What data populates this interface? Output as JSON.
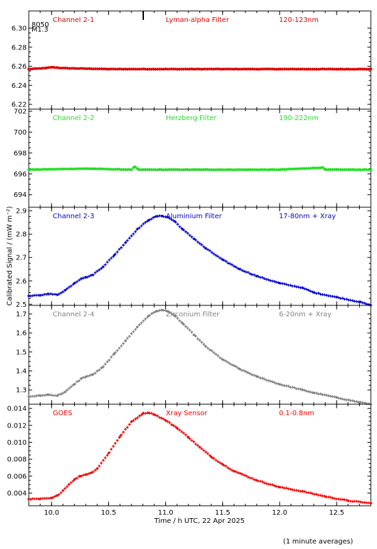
{
  "chart_data": {
    "type": "scatter",
    "xlabel": "Time / h UTC, 22 Apr 2025",
    "ylabel": "Calibrated Signal / (mW m⁻²)",
    "footnote": "(1 minute averages)",
    "xlim": [
      9.8,
      12.8
    ],
    "xticks": [
      10.0,
      10.5,
      11.0,
      11.5,
      12.0,
      12.5
    ],
    "xtick_labels": [
      "10.0",
      "10.5",
      "11.0",
      "11.5",
      "12.0",
      "12.5"
    ],
    "corner_marks": [
      "8050",
      "M1.3"
    ],
    "panels": [
      {
        "channel": "Channel 2-1",
        "filter": "Lyman-alpha Filter",
        "band": "120-123nm",
        "color": "#dd0000",
        "ylim": [
          6.215,
          6.318
        ],
        "yticks": [
          6.22,
          6.24,
          6.26,
          6.28,
          6.3
        ],
        "ytick_labels": [
          "6.22",
          "6.24",
          "6.26",
          "6.28",
          "6.30"
        ],
        "x": [
          9.8,
          9.95,
          10.0,
          10.1,
          10.5,
          11.0,
          11.5,
          12.0,
          12.5,
          12.8
        ],
        "y": [
          6.257,
          6.258,
          6.259,
          6.258,
          6.257,
          6.257,
          6.257,
          6.257,
          6.257,
          6.257
        ]
      },
      {
        "channel": "Channel 2-2",
        "filter": "Herzberg Filter",
        "band": "190-222nm",
        "color": "#22dd22",
        "ylim": [
          692.8,
          702.2
        ],
        "yticks": [
          694,
          696,
          698,
          700,
          702
        ],
        "ytick_labels": [
          "694",
          "696",
          "698",
          "700",
          "702"
        ],
        "x": [
          9.8,
          10.3,
          10.7,
          10.73,
          10.76,
          11.0,
          12.0,
          12.38,
          12.4,
          12.8
        ],
        "y": [
          696.4,
          696.5,
          696.4,
          696.7,
          696.4,
          696.4,
          696.4,
          696.6,
          696.4,
          696.4
        ]
      },
      {
        "channel": "Channel 2-3",
        "filter": "Aluminium Filter",
        "band": "17-80nm + Xray",
        "color": "#0000cc",
        "ylim": [
          2.495,
          2.915
        ],
        "yticks": [
          2.5,
          2.6,
          2.7,
          2.8,
          2.9
        ],
        "ytick_labels": [
          "2.5",
          "2.6",
          "2.7",
          "2.8",
          "2.9"
        ],
        "x": [
          9.8,
          9.9,
          9.97,
          10.05,
          10.12,
          10.2,
          10.26,
          10.3,
          10.36,
          10.45,
          10.55,
          10.65,
          10.75,
          10.85,
          10.92,
          10.97,
          11.02,
          11.08,
          11.15,
          11.25,
          11.35,
          11.5,
          11.65,
          11.8,
          12.0,
          12.2,
          12.3,
          12.5,
          12.7,
          12.8
        ],
        "y": [
          2.535,
          2.538,
          2.545,
          2.54,
          2.56,
          2.59,
          2.61,
          2.615,
          2.625,
          2.66,
          2.71,
          2.765,
          2.82,
          2.86,
          2.876,
          2.878,
          2.872,
          2.855,
          2.82,
          2.78,
          2.74,
          2.69,
          2.65,
          2.62,
          2.59,
          2.57,
          2.55,
          2.53,
          2.51,
          2.495
        ]
      },
      {
        "channel": "Channel 2-4",
        "filter": "Zirconium Filter",
        "band": "6-20nm + Xray",
        "color": "#808080",
        "ylim": [
          1.225,
          1.745
        ],
        "yticks": [
          1.3,
          1.4,
          1.5,
          1.6,
          1.7
        ],
        "ytick_labels": [
          "1.3",
          "1.4",
          "1.5",
          "1.6",
          "1.7"
        ],
        "x": [
          9.8,
          9.9,
          9.97,
          10.05,
          10.12,
          10.2,
          10.26,
          10.3,
          10.36,
          10.45,
          10.55,
          10.65,
          10.75,
          10.85,
          10.92,
          10.97,
          11.02,
          11.08,
          11.15,
          11.25,
          11.35,
          11.5,
          11.65,
          11.8,
          12.0,
          12.2,
          12.3,
          12.5,
          12.7,
          12.8
        ],
        "y": [
          1.265,
          1.27,
          1.275,
          1.27,
          1.29,
          1.33,
          1.36,
          1.37,
          1.38,
          1.42,
          1.49,
          1.56,
          1.63,
          1.69,
          1.715,
          1.72,
          1.715,
          1.69,
          1.65,
          1.59,
          1.53,
          1.46,
          1.41,
          1.37,
          1.33,
          1.3,
          1.285,
          1.26,
          1.235,
          1.225
        ]
      },
      {
        "channel": "GOES",
        "filter": "Xray Sensor",
        "band": "0.1-0.8nm",
        "color": "#ee0000",
        "ylim": [
          0.0025,
          0.0145
        ],
        "yticks": [
          0.004,
          0.006,
          0.008,
          0.01,
          0.012,
          0.014
        ],
        "ytick_labels": [
          "0.004",
          "0.006",
          "0.008",
          "0.010",
          "0.012",
          "0.014"
        ],
        "x": [
          9.8,
          9.9,
          10.0,
          10.05,
          10.1,
          10.15,
          10.2,
          10.25,
          10.3,
          10.35,
          10.4,
          10.5,
          10.6,
          10.7,
          10.8,
          10.85,
          10.9,
          11.0,
          11.1,
          11.2,
          11.3,
          11.4,
          11.5,
          11.6,
          11.8,
          12.0,
          12.2,
          12.4,
          12.6,
          12.8
        ],
        "y": [
          0.0033,
          0.0033,
          0.0034,
          0.0037,
          0.0043,
          0.005,
          0.0056,
          0.006,
          0.0062,
          0.0064,
          0.0069,
          0.0087,
          0.0107,
          0.0124,
          0.0134,
          0.0135,
          0.0133,
          0.0126,
          0.0117,
          0.0106,
          0.0094,
          0.0083,
          0.0074,
          0.0066,
          0.0055,
          0.0047,
          0.0042,
          0.0036,
          0.0031,
          0.0028
        ]
      }
    ]
  }
}
